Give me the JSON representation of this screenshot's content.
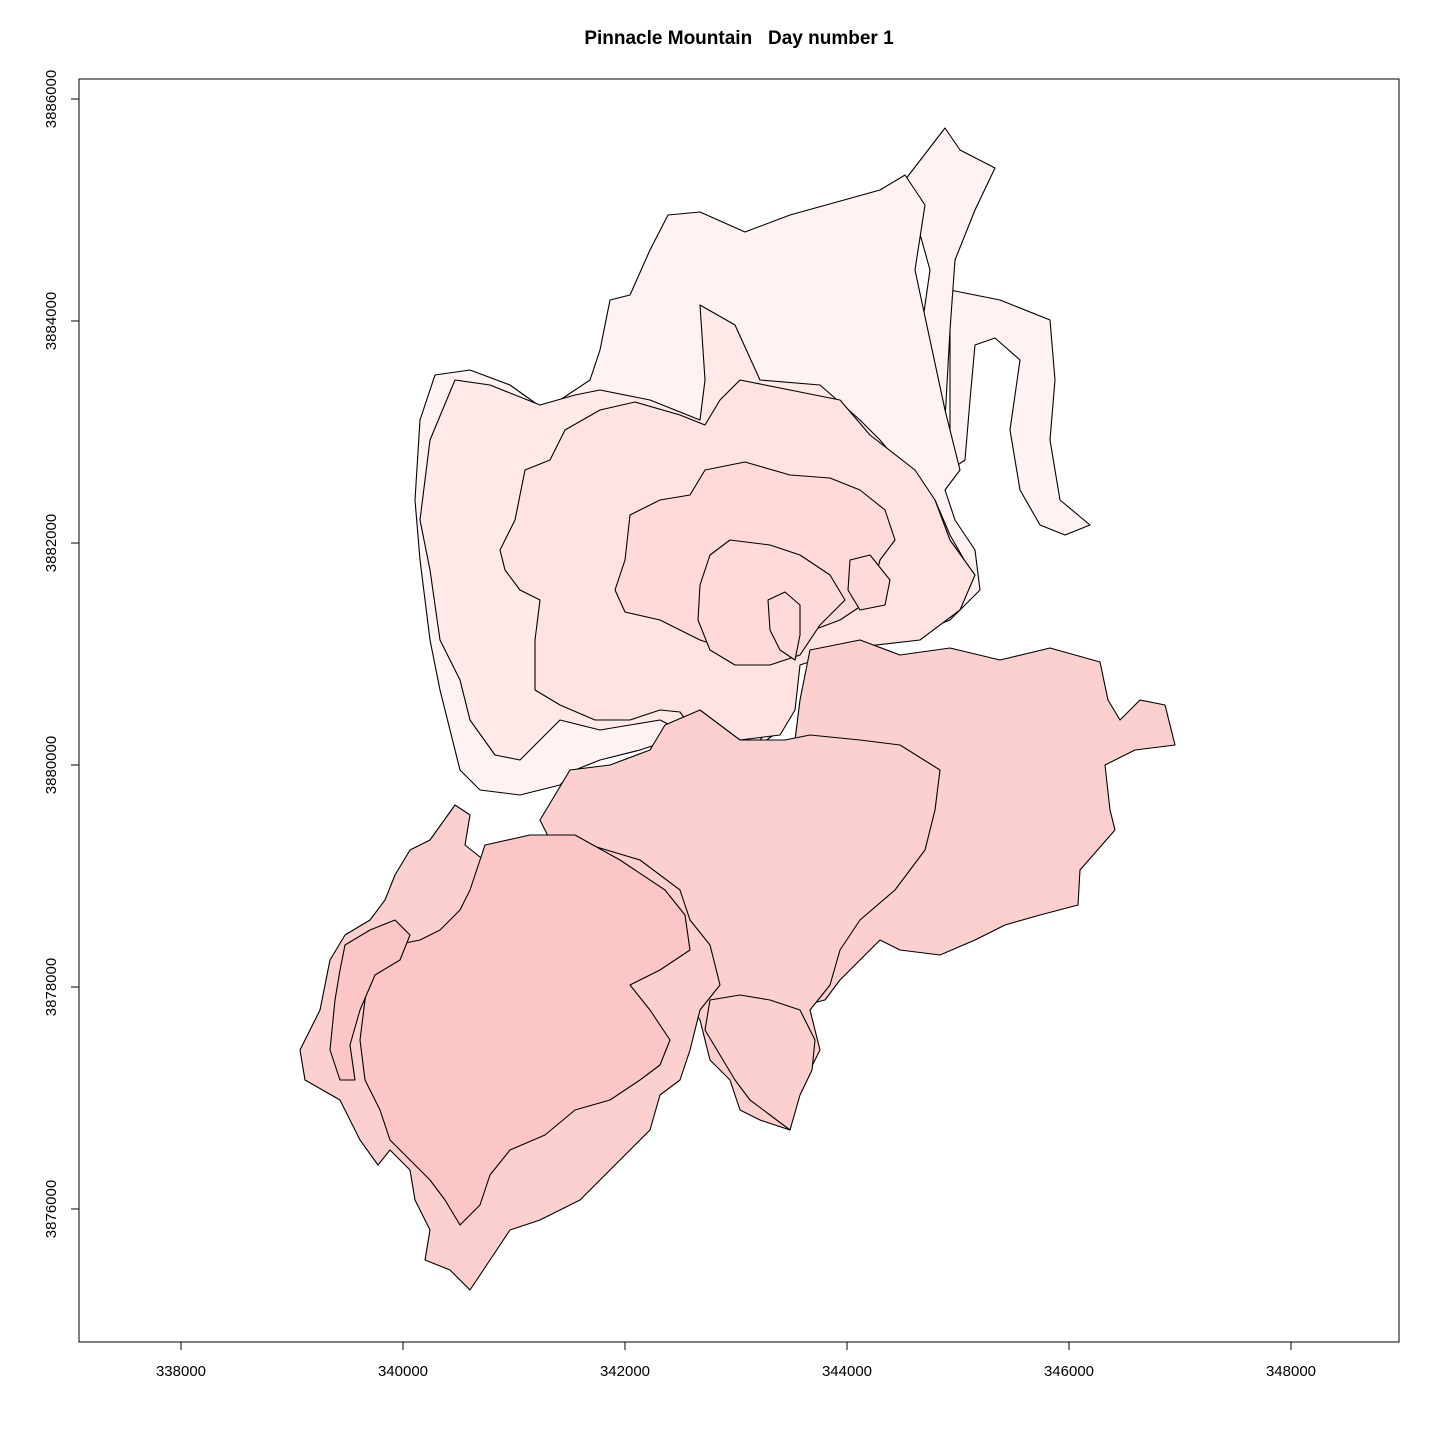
{
  "title": "Pinnacle Mountain   Day number 1",
  "x_axis": {
    "ticks": [
      "338000",
      "340000",
      "342000",
      "344000",
      "346000",
      "348000"
    ]
  },
  "y_axis": {
    "ticks": [
      "3876000",
      "3878000",
      "3880000",
      "3882000",
      "3884000",
      "3886000"
    ]
  },
  "colors": {
    "north_outer": "#fff2f2",
    "north_mid": "#ffe9e9",
    "north_core": "#ffe2e2",
    "north_inner": "#ffdada",
    "south_outer": "#fdd0d0",
    "south_core": "#fcc6c6"
  }
}
